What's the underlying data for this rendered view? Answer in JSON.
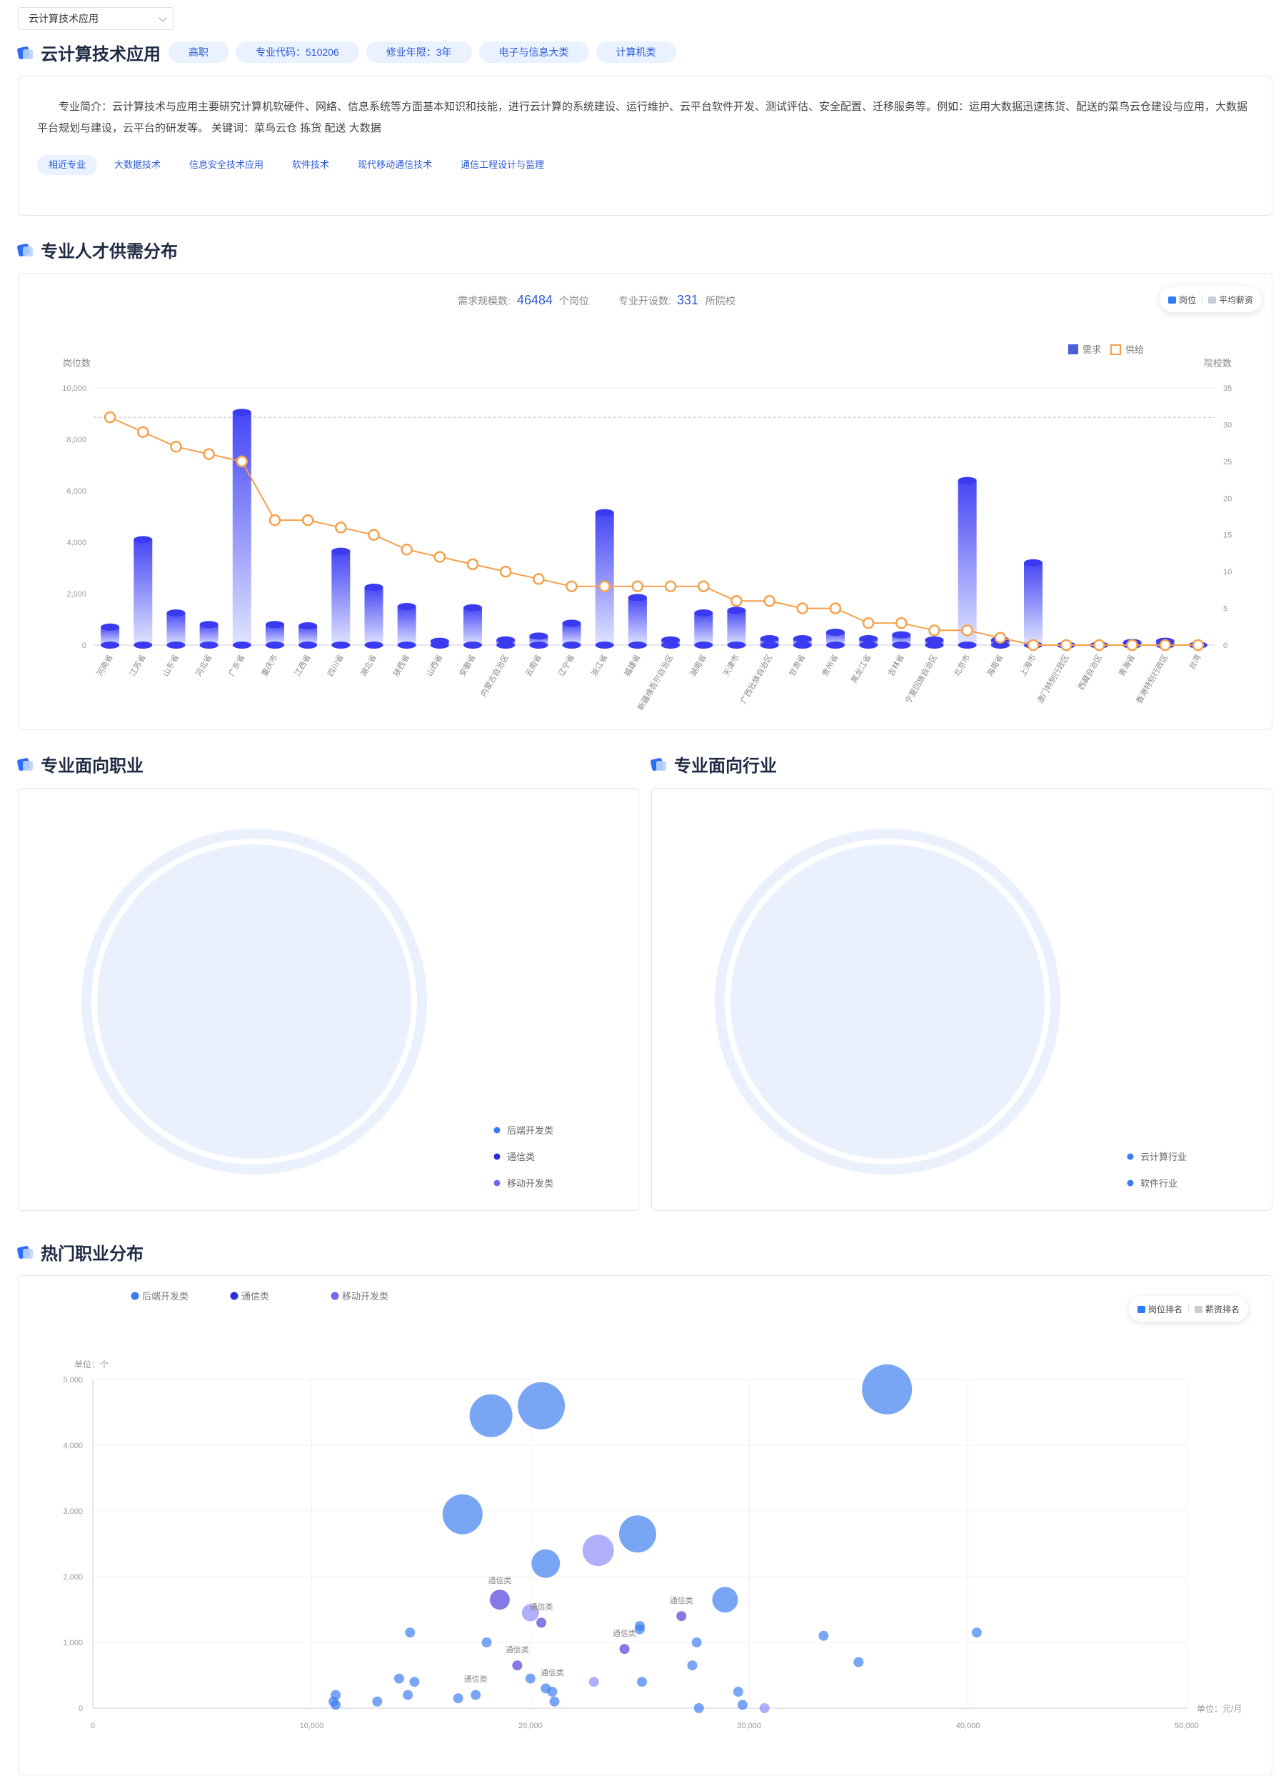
{
  "selector": {
    "value": "云计算技术应用"
  },
  "major": {
    "name": "云计算技术应用",
    "tags": [
      "高职",
      "专业代码：510206",
      "修业年限：3年",
      "电子与信息大类",
      "计算机类"
    ],
    "intro": "专业简介：云计算技术与应用主要研究计算机软硬件、网络、信息系统等方面基本知识和技能，进行云计算的系统建设、运行维护、云平台软件开发、测试评估、安全配置、迁移服务等。例如：运用大数据迅速拣货、配送的菜鸟云仓建设与应用，大数据平台规划与建设，云平台的研发等。 关键词：菜鸟云仓 拣货 配送 大数据",
    "related": [
      "相近专业",
      "大数据技术",
      "信息安全技术应用",
      "软件技术",
      "现代移动通信技术",
      "通信工程设计与监理"
    ]
  },
  "supply": {
    "title": "专业人才供需分布",
    "demand_label": "需求规模数:",
    "demand_value": "46484",
    "demand_unit": "个岗位",
    "school_label": "专业开设数:",
    "school_value": "331",
    "school_unit": "所院校",
    "toggle": [
      "岗位",
      "平均薪资"
    ],
    "legend": [
      "需求",
      "供给"
    ],
    "ylabel_left": "岗位数",
    "ylabel_right": "院校数"
  },
  "jobs_section": {
    "title": "专业面向职业",
    "legend": [
      "后端开发类",
      "通信类",
      "移动开发类"
    ]
  },
  "industry_section": {
    "title": "专业面向行业",
    "legend": [
      "云计算行业",
      "软件行业"
    ]
  },
  "hot": {
    "title": "热门职业分布",
    "legend": [
      "后端开发类",
      "通信类",
      "移动开发类"
    ],
    "toggle": [
      "岗位排名",
      "薪资排名"
    ],
    "y_unit": "单位：个",
    "x_unit": "单位：元/月"
  },
  "colors": {
    "accent": "#2e6cf6",
    "bar": "#4a4af5",
    "line": "#f5a04a",
    "backend": "#3a7bf0",
    "telecom": "#2f2fd6",
    "mobile": "#6c6cf0"
  },
  "chart_data": [
    {
      "type": "bar",
      "categories": [
        "河南省",
        "江苏省",
        "山东省",
        "河北省",
        "广东省",
        "重庆市",
        "江西省",
        "四川省",
        "湖北省",
        "陕西省",
        "山西省",
        "安徽省",
        "内蒙古自治区",
        "云南省",
        "辽宁省",
        "浙江省",
        "福建省",
        "新疆维吾尔自治区",
        "湖南省",
        "天津市",
        "广西壮族自治区",
        "甘肃省",
        "贵州省",
        "黑龙江省",
        "吉林省",
        "宁夏回族自治区",
        "北京市",
        "海南省",
        "上海市",
        "澳门特别行政区",
        "西藏自治区",
        "青海省",
        "香港特别行政区",
        "台湾"
      ],
      "series": [
        {
          "name": "需求",
          "axis": "left",
          "values": [
            700,
            4100,
            1250,
            800,
            9050,
            800,
            750,
            3650,
            2250,
            1500,
            150,
            1450,
            200,
            350,
            850,
            5150,
            1850,
            200,
            1250,
            1350,
            250,
            250,
            500,
            250,
            400,
            200,
            6400,
            200,
            3200,
            20,
            20,
            100,
            150,
            20
          ]
        },
        {
          "name": "供给",
          "axis": "right",
          "values": [
            31,
            29,
            27,
            26,
            25,
            17,
            17,
            16,
            15,
            13,
            12,
            11,
            10,
            9,
            8,
            8,
            8,
            8,
            8,
            6,
            6,
            5,
            5,
            3,
            3,
            2,
            2,
            1,
            0,
            0,
            0,
            0,
            0,
            0
          ]
        }
      ],
      "ylim_left": [
        0,
        10000
      ],
      "yticks_left": [
        "0",
        "2,000",
        "4,000",
        "6,000",
        "8,000",
        "10,000"
      ],
      "ylim_right": [
        0,
        35
      ],
      "yticks_right": [
        "0",
        "5",
        "10",
        "15",
        "20",
        "25",
        "30",
        "35"
      ]
    },
    {
      "type": "pie",
      "title": "专业面向职业",
      "categories": [
        "后端开发类",
        "通信类",
        "移动开发类"
      ]
    },
    {
      "type": "pie",
      "title": "专业面向行业",
      "categories": [
        "云计算行业",
        "软件行业"
      ]
    },
    {
      "type": "scatter",
      "xlim": [
        0,
        50000
      ],
      "ylim": [
        0,
        5000
      ],
      "xticks": [
        "0",
        "10,000",
        "20,000",
        "30,000",
        "40,000",
        "50,000"
      ],
      "yticks": [
        "0",
        "1,000",
        "2,000",
        "3,000",
        "4,000",
        "5,000"
      ],
      "series": [
        {
          "name": "后端开发类",
          "points": [
            [
              18200,
              4450,
              30
            ],
            [
              20500,
              4600,
              33
            ],
            [
              36300,
              4850,
              35
            ],
            [
              16900,
              2950,
              28
            ],
            [
              24900,
              2650,
              26
            ],
            [
              20700,
              2200,
              20
            ],
            [
              28900,
              1650,
              18
            ],
            [
              14500,
              1150,
              7
            ],
            [
              18000,
              1000,
              7
            ],
            [
              25000,
              1200,
              7
            ],
            [
              25000,
              1250,
              7
            ],
            [
              27600,
              1000,
              7
            ],
            [
              33400,
              1100,
              7
            ],
            [
              35000,
              700,
              7
            ],
            [
              40400,
              1150,
              7
            ],
            [
              14000,
              450,
              7
            ],
            [
              14700,
              400,
              7
            ],
            [
              14400,
              200,
              7
            ],
            [
              16700,
              150,
              7
            ],
            [
              17500,
              200,
              7
            ],
            [
              13000,
              100,
              7
            ],
            [
              11000,
              100,
              7
            ],
            [
              11100,
              50,
              7
            ],
            [
              11100,
              200,
              7
            ],
            [
              20000,
              450,
              7
            ],
            [
              20700,
              300,
              7
            ],
            [
              21000,
              250,
              7
            ],
            [
              21100,
              100,
              7
            ],
            [
              25100,
              400,
              7
            ],
            [
              27400,
              650,
              7
            ],
            [
              29500,
              250,
              7
            ],
            [
              29700,
              50,
              7
            ],
            [
              27700,
              0,
              7
            ]
          ]
        },
        {
          "name": "通信类",
          "points": [
            [
              18600,
              1650,
              14
            ],
            [
              20500,
              1300,
              7
            ],
            [
              19400,
              650,
              7
            ],
            [
              24300,
              900,
              7
            ],
            [
              26900,
              1400,
              7
            ]
          ]
        },
        {
          "name": "移动开发类",
          "points": [
            [
              23100,
              2400,
              22
            ],
            [
              20000,
              1450,
              12
            ],
            [
              22900,
              400,
              7
            ],
            [
              30700,
              0,
              7
            ]
          ]
        }
      ],
      "annotations": [
        {
          "text": "通信类",
          "x": 18600,
          "y": 1900
        },
        {
          "text": "通信类",
          "x": 20500,
          "y": 1500
        },
        {
          "text": "通信类",
          "x": 19400,
          "y": 850
        },
        {
          "text": "通信类",
          "x": 24300,
          "y": 1100
        },
        {
          "text": "通信类",
          "x": 26900,
          "y": 1600
        },
        {
          "text": "通信类",
          "x": 21000,
          "y": 500
        },
        {
          "text": "通信类",
          "x": 17500,
          "y": 400
        }
      ]
    }
  ]
}
